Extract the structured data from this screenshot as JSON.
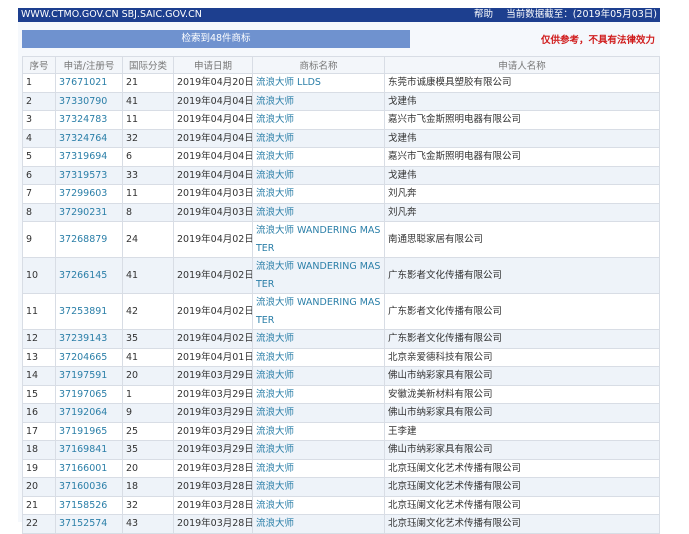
{
  "header": {
    "site": "WWW.CTMO.GOV.CN SBJ.SAIC.GOV.CN",
    "help": "帮助",
    "data_date": "当前数据截至：(2019年05月03日)",
    "bar_color": "#1d3f8f"
  },
  "toolbar": {
    "result_count": "检索到48件商标",
    "disclaimer": "仅供参考，不具有法律效力",
    "disclaimer_color": "#d01c1c"
  },
  "table": {
    "columns": [
      "序号",
      "申请/注册号",
      "国际分类",
      "申请日期",
      "商标名称",
      "申请人名称"
    ],
    "rows": [
      [
        "1",
        "37671021",
        "21",
        "2019年04月20日",
        "流浪大师 LLDS",
        "东莞市诚康模具塑胶有限公司"
      ],
      [
        "2",
        "37330790",
        "41",
        "2019年04月04日",
        "流浪大师",
        "戈建伟"
      ],
      [
        "3",
        "37324783",
        "11",
        "2019年04月04日",
        "流浪大师",
        "嘉兴市飞金斯照明电器有限公司"
      ],
      [
        "4",
        "37324764",
        "32",
        "2019年04月04日",
        "流浪大师",
        "戈建伟"
      ],
      [
        "5",
        "37319694",
        "6",
        "2019年04月04日",
        "流浪大师",
        "嘉兴市飞金斯照明电器有限公司"
      ],
      [
        "6",
        "37319573",
        "33",
        "2019年04月04日",
        "流浪大师",
        "戈建伟"
      ],
      [
        "7",
        "37299603",
        "11",
        "2019年04月03日",
        "流浪大师",
        "刘凡奔"
      ],
      [
        "8",
        "37290231",
        "8",
        "2019年04月03日",
        "流浪大师",
        "刘凡奔"
      ],
      [
        "9",
        "37268879",
        "24",
        "2019年04月02日",
        "流浪大师 WANDERING MASTER",
        "南通思聪家居有限公司"
      ],
      [
        "10",
        "37266145",
        "41",
        "2019年04月02日",
        "流浪大师 WANDERING MASTER",
        "广东影者文化传播有限公司"
      ],
      [
        "11",
        "37253891",
        "42",
        "2019年04月02日",
        "流浪大师 WANDERING MASTER",
        "广东影者文化传播有限公司"
      ],
      [
        "12",
        "37239143",
        "35",
        "2019年04月02日",
        "流浪大师",
        "广东影者文化传播有限公司"
      ],
      [
        "13",
        "37204665",
        "41",
        "2019年04月01日",
        "流浪大师",
        "北京亲爱德科技有限公司"
      ],
      [
        "14",
        "37197591",
        "20",
        "2019年03月29日",
        "流浪大师",
        "佛山市纳彩家具有限公司"
      ],
      [
        "15",
        "37197065",
        "1",
        "2019年03月29日",
        "流浪大师",
        "安徽泷美新材料有限公司"
      ],
      [
        "16",
        "37192064",
        "9",
        "2019年03月29日",
        "流浪大师",
        "佛山市纳彩家具有限公司"
      ],
      [
        "17",
        "37191965",
        "25",
        "2019年03月29日",
        "流浪大师",
        "王李建"
      ],
      [
        "18",
        "37169841",
        "35",
        "2019年03月29日",
        "流浪大师",
        "佛山市纳彩家具有限公司"
      ],
      [
        "19",
        "37166001",
        "20",
        "2019年03月28日",
        "流浪大师",
        "北京珏阑文化艺术传播有限公司"
      ],
      [
        "20",
        "37160036",
        "18",
        "2019年03月28日",
        "流浪大师",
        "北京珏阑文化艺术传播有限公司"
      ],
      [
        "21",
        "37158526",
        "32",
        "2019年03月28日",
        "流浪大师",
        "北京珏阑文化艺术传播有限公司"
      ],
      [
        "22",
        "37152574",
        "43",
        "2019年03月28日",
        "流浪大师",
        "北京珏阑文化艺术传播有限公司"
      ]
    ]
  }
}
